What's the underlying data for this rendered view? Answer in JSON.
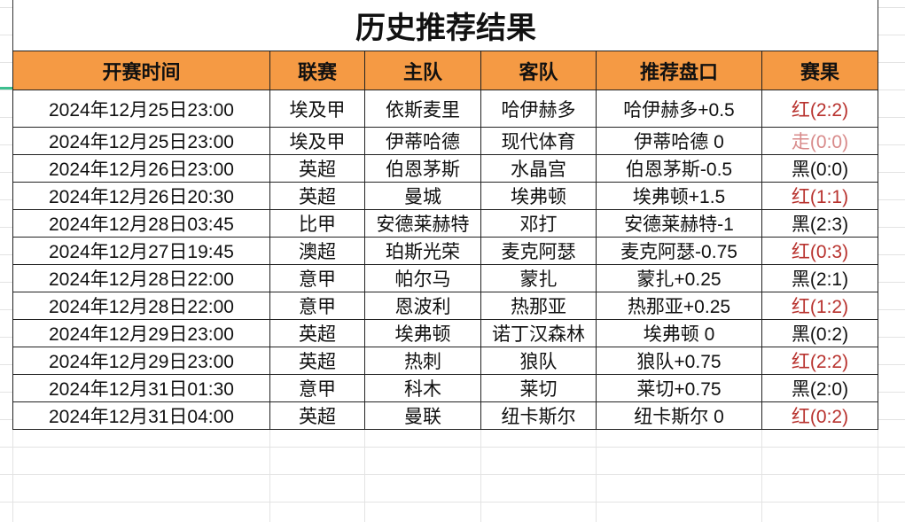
{
  "title": "历史推荐结果",
  "headers": [
    "开赛时间",
    "联赛",
    "主队",
    "客队",
    "推荐盘口",
    "赛果"
  ],
  "rows": [
    {
      "time": "2024年12月25日23:00",
      "league": "埃及甲",
      "home": "依斯麦里",
      "away": "哈伊赫多",
      "pick": "哈伊赫多+0.5",
      "result": "红(2:2)",
      "status": "red"
    },
    {
      "time": "2024年12月25日23:00",
      "league": "埃及甲",
      "home": "伊蒂哈德",
      "away": "现代体育",
      "pick": "伊蒂哈德 0",
      "result": "走(0:0)",
      "status": "walk"
    },
    {
      "time": "2024年12月26日23:00",
      "league": "英超",
      "home": "伯恩茅斯",
      "away": "水晶宫",
      "pick": "伯恩茅斯-0.5",
      "result": "黑(0:0)",
      "status": "black"
    },
    {
      "time": "2024年12月26日20:30",
      "league": "英超",
      "home": "曼城",
      "away": "埃弗顿",
      "pick": "埃弗顿+1.5",
      "result": "红(1:1)",
      "status": "red"
    },
    {
      "time": "2024年12月28日03:45",
      "league": "比甲",
      "home": "安德莱赫特",
      "away": "邓打",
      "pick": "安德莱赫特-1",
      "result": "黑(2:3)",
      "status": "black"
    },
    {
      "time": "2024年12月27日19:45",
      "league": "澳超",
      "home": "珀斯光荣",
      "away": "麦克阿瑟",
      "pick": "麦克阿瑟-0.75",
      "result": "红(0:3)",
      "status": "red"
    },
    {
      "time": "2024年12月28日22:00",
      "league": "意甲",
      "home": "帕尔马",
      "away": "蒙扎",
      "pick": "蒙扎+0.25",
      "result": "黑(2:1)",
      "status": "black"
    },
    {
      "time": "2024年12月28日22:00",
      "league": "意甲",
      "home": "恩波利",
      "away": "热那亚",
      "pick": "热那亚+0.25",
      "result": "红(1:2)",
      "status": "red"
    },
    {
      "time": "2024年12月29日23:00",
      "league": "英超",
      "home": "埃弗顿",
      "away": "诺丁汉森林",
      "pick": "埃弗顿 0",
      "result": "黑(0:2)",
      "status": "black"
    },
    {
      "time": "2024年12月29日23:00",
      "league": "英超",
      "home": "热刺",
      "away": "狼队",
      "pick": "狼队+0.75",
      "result": "红(2:2)",
      "status": "red"
    },
    {
      "time": "2024年12月31日01:30",
      "league": "意甲",
      "home": "科木",
      "away": "莱切",
      "pick": "莱切+0.75",
      "result": "黑(2:0)",
      "status": "black"
    },
    {
      "time": "2024年12月31日04:00",
      "league": "英超",
      "home": "曼联",
      "away": "纽卡斯尔",
      "pick": "纽卡斯尔 0",
      "result": "红(0:2)",
      "status": "red"
    }
  ],
  "colors": {
    "header_bg": "#f59a44",
    "red": "#b8322e",
    "walk": "#d88a8a"
  }
}
